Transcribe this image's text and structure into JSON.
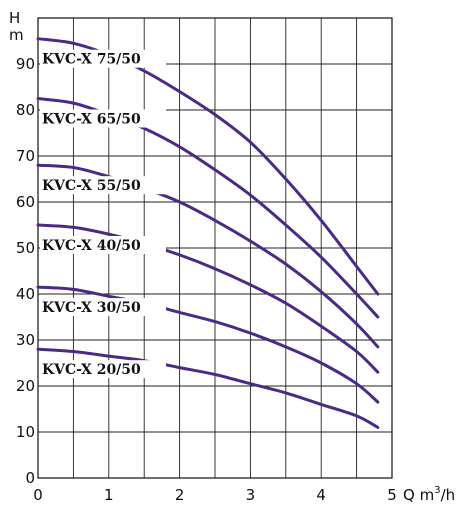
{
  "chart_data": {
    "type": "line",
    "grid": true,
    "ylabel_top": "H",
    "ylabel_unit": "m",
    "xlabel": "Q m",
    "xlabel_sup": "3",
    "xlabel_suffix": "/h",
    "xlim": [
      0,
      5
    ],
    "ylim": [
      0,
      100
    ],
    "x_ticks": [
      "0",
      "1",
      "2",
      "3",
      "4",
      "5"
    ],
    "y_ticks": [
      "0",
      "10",
      "20",
      "30",
      "40",
      "50",
      "60",
      "70",
      "80",
      "90"
    ],
    "curve_color": "#4b2a86",
    "series": [
      {
        "name": "KVC-X 75/50",
        "x": [
          0,
          0.5,
          1,
          1.5,
          2,
          2.5,
          3,
          3.5,
          4,
          4.5,
          4.8
        ],
        "y": [
          95.5,
          94.5,
          92,
          88.5,
          84,
          79,
          73,
          65,
          56,
          46,
          40
        ]
      },
      {
        "name": "KVC-X 65/50",
        "x": [
          0,
          0.5,
          1,
          1.5,
          2,
          2.5,
          3,
          3.5,
          4,
          4.5,
          4.8
        ],
        "y": [
          82.5,
          81.5,
          79,
          76,
          72,
          67,
          61.5,
          55,
          48,
          40,
          35
        ]
      },
      {
        "name": "KVC-X 55/50",
        "x": [
          0,
          0.5,
          1,
          1.5,
          2,
          2.5,
          3,
          3.5,
          4,
          4.5,
          4.8
        ],
        "y": [
          68,
          67.5,
          65.5,
          63,
          60,
          56,
          51.5,
          46.5,
          40.5,
          33.5,
          28.5
        ]
      },
      {
        "name": "KVC-X 40/50",
        "x": [
          0,
          0.5,
          1,
          1.5,
          2,
          2.5,
          3,
          3.5,
          4,
          4.5,
          4.8
        ],
        "y": [
          55,
          54.5,
          53,
          51,
          48.5,
          45.5,
          42,
          38,
          33,
          27.5,
          23
        ]
      },
      {
        "name": "KVC-X 30/50",
        "x": [
          0,
          0.5,
          1,
          1.5,
          2,
          2.5,
          3,
          3.5,
          4,
          4.5,
          4.8
        ],
        "y": [
          41.5,
          41,
          39.5,
          38,
          36,
          34,
          31.5,
          28.5,
          25,
          20.5,
          16.5
        ]
      },
      {
        "name": "KVC-X 20/50",
        "x": [
          0,
          0.5,
          1,
          1.5,
          2,
          2.5,
          3,
          3.5,
          4,
          4.5,
          4.8
        ],
        "y": [
          28,
          27.5,
          26.5,
          25.5,
          24,
          22.5,
          20.5,
          18.5,
          16,
          13.5,
          11
        ]
      }
    ]
  }
}
